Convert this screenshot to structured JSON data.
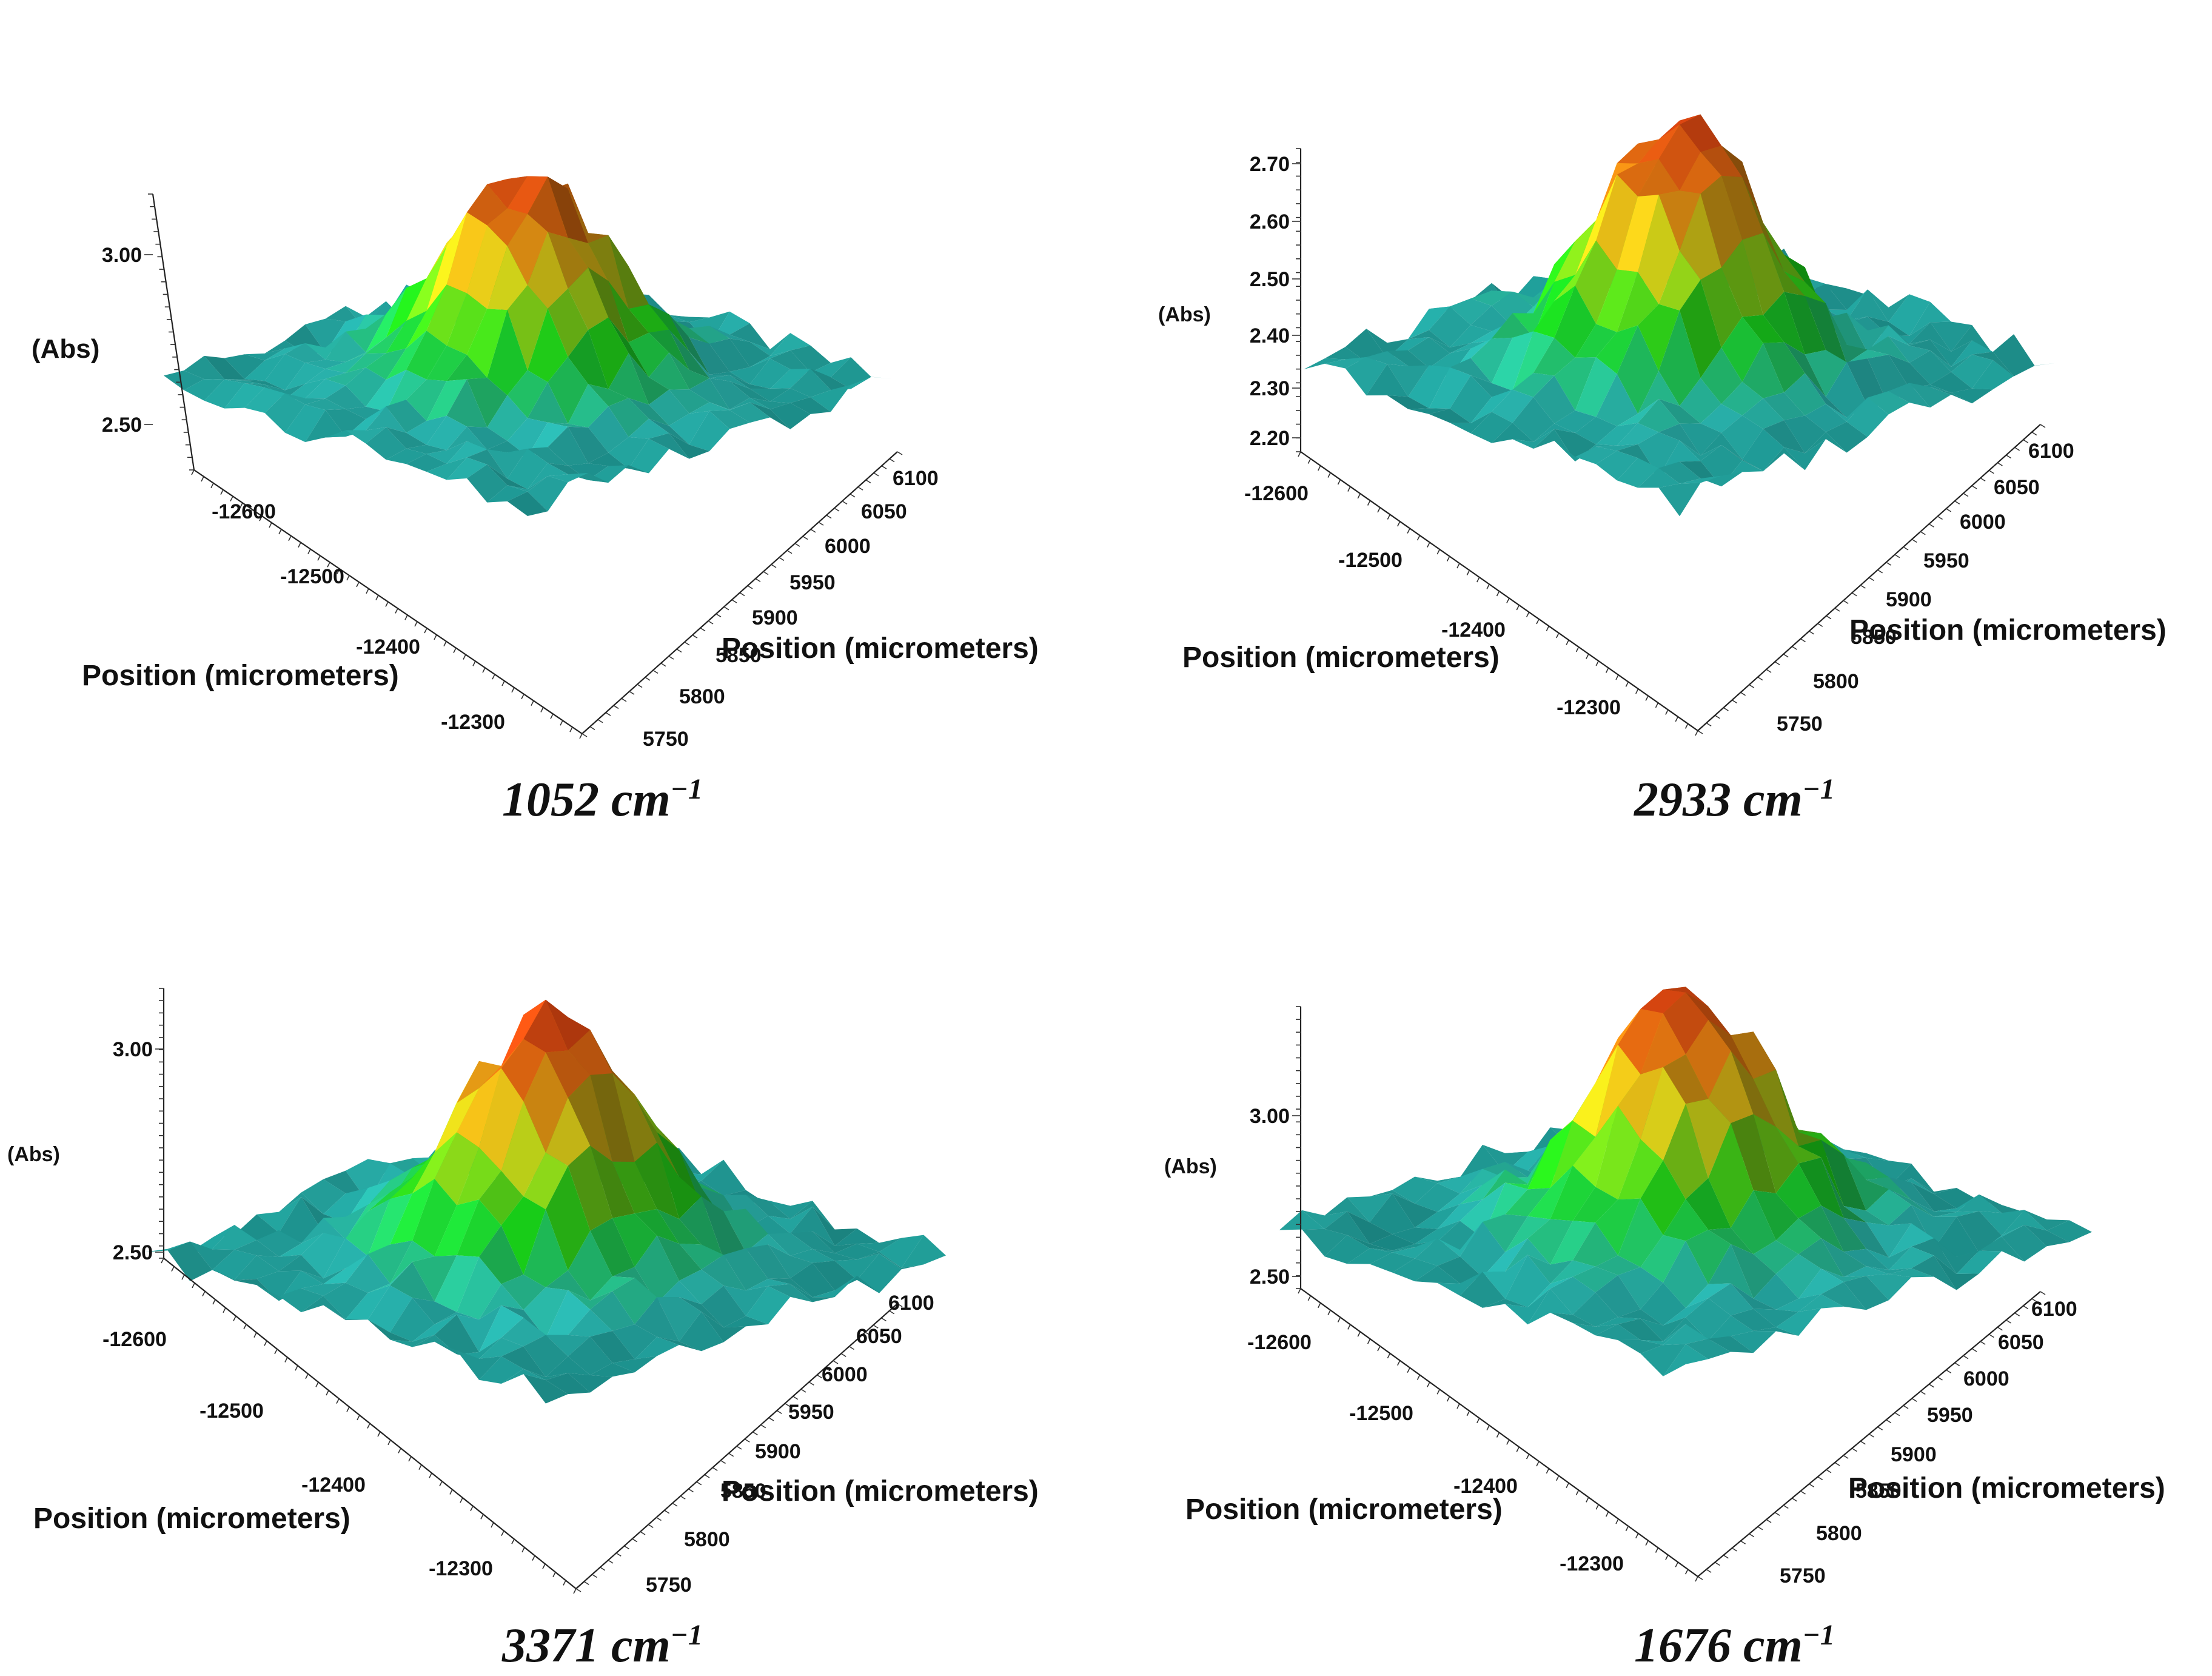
{
  "chart_data": [
    {
      "type": "surface3d",
      "caption": "1052 cm",
      "caption_sup": "−1",
      "zlabel": "(Abs)",
      "z_ticks": [
        "3.00",
        "2.50"
      ],
      "y_label": "Position (micrometers)",
      "y_ticks": [
        "-12600",
        "-12500",
        "-12400",
        "-12300"
      ],
      "x_label": "Position (micrometers)",
      "x_ticks": [
        "6100",
        "6050",
        "6000",
        "5950",
        "5900",
        "5850",
        "5800",
        "5750"
      ],
      "colormap": [
        "#0a6e6e",
        "#2ec7c0",
        "#1ae01a",
        "#d9e01a",
        "#f07a12",
        "#e62a12"
      ]
    },
    {
      "type": "surface3d",
      "caption": "2933 cm",
      "caption_sup": "−1",
      "zlabel": "(Abs)",
      "z_ticks": [
        "2.70",
        "2.60",
        "2.50",
        "2.40",
        "2.30",
        "2.20"
      ],
      "y_label": "Position (micrometers)",
      "y_ticks": [
        "-12600",
        "-12500",
        "-12400",
        "-12300"
      ],
      "x_label": "Position (micrometers)",
      "x_ticks": [
        "6100",
        "6050",
        "6000",
        "5950",
        "5900",
        "5850",
        "5800",
        "5750"
      ],
      "colormap": [
        "#0a6e6e",
        "#2ec7c0",
        "#1ae01a",
        "#d9e01a",
        "#f07a12",
        "#e62a12"
      ]
    },
    {
      "type": "surface3d",
      "caption": "3371 cm",
      "caption_sup": "−1",
      "zlabel": "(Abs)",
      "z_ticks": [
        "3.00",
        "2.50"
      ],
      "y_label": "Position (micrometers)",
      "y_ticks": [
        "-12600",
        "-12500",
        "-12400",
        "-12300"
      ],
      "x_label": "Position (micrometers)",
      "x_ticks": [
        "6100",
        "6050",
        "6000",
        "5950",
        "5900",
        "5850",
        "5800",
        "5750"
      ],
      "colormap": [
        "#0a6e6e",
        "#2ec7c0",
        "#1ae01a",
        "#d9e01a",
        "#f07a12",
        "#e62a12"
      ]
    },
    {
      "type": "surface3d",
      "caption": "1676 cm",
      "caption_sup": "−1",
      "zlabel": "(Abs)",
      "z_ticks": [
        "3.00",
        "2.50"
      ],
      "y_label": "Position (micrometers)",
      "y_ticks": [
        "-12600",
        "-12500",
        "-12400",
        "-12300"
      ],
      "x_label": "Position (micrometers)",
      "x_ticks": [
        "6100",
        "6050",
        "6000",
        "5950",
        "5900",
        "5850",
        "5800",
        "5750"
      ],
      "colormap": [
        "#0a6e6e",
        "#2ec7c0",
        "#1ae01a",
        "#d9e01a",
        "#f07a12",
        "#e62a12"
      ]
    }
  ]
}
